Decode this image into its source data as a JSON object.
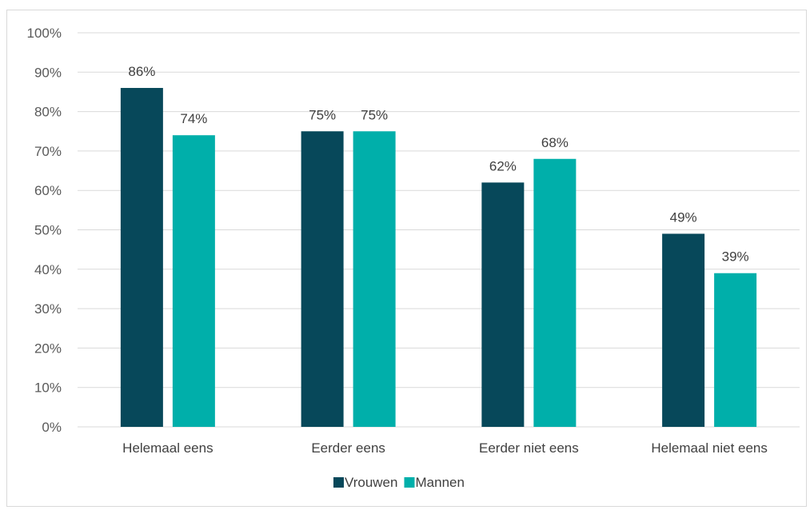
{
  "chart_data": {
    "type": "bar",
    "categories": [
      "Helemaal eens",
      "Eerder eens",
      "Eerder niet eens",
      "Helemaal niet eens"
    ],
    "series": [
      {
        "name": "Vrouwen",
        "values": [
          86,
          75,
          62,
          49
        ],
        "labels": [
          "86%",
          "75%",
          "62%",
          "49%"
        ],
        "color": "#07485a"
      },
      {
        "name": "Mannen",
        "values": [
          74,
          75,
          68,
          39
        ],
        "labels": [
          "74%",
          "75%",
          "68%",
          "39%"
        ],
        "color": "#00afaa"
      }
    ],
    "ylim": [
      0,
      100
    ],
    "yticks": [
      0,
      10,
      20,
      30,
      40,
      50,
      60,
      70,
      80,
      90,
      100
    ],
    "ytick_labels": [
      "0%",
      "10%",
      "20%",
      "30%",
      "40%",
      "50%",
      "60%",
      "70%",
      "80%",
      "90%",
      "100%"
    ],
    "grid": true,
    "legend_position": "bottom",
    "gridline_color": "#d9d9d9"
  }
}
